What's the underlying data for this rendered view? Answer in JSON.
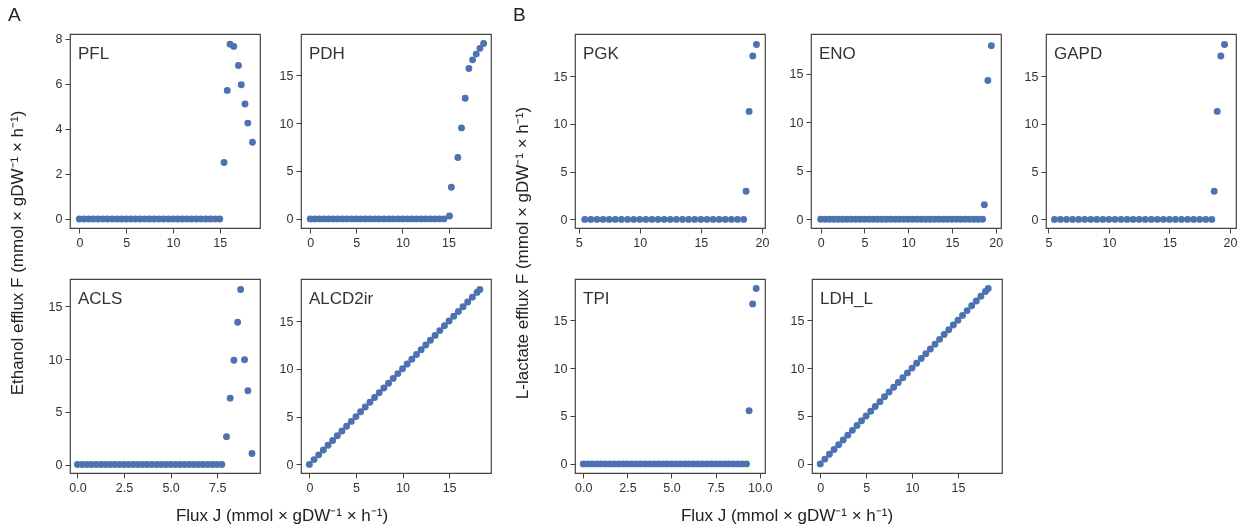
{
  "chart_data": [
    {
      "type": "scatter",
      "title": "PFL",
      "annotations": [
        "A"
      ],
      "ylabel": "Ethanol efflux F (mmol × gDW⁻¹ × h⁻¹)",
      "marker": "circle",
      "color": "#4c72b0",
      "xlim": [
        -1,
        19.3
      ],
      "ylim": [
        -0.4,
        8.2
      ],
      "xticks": [
        0,
        5,
        10,
        15
      ],
      "yticks": [
        0,
        2,
        4,
        6,
        8
      ],
      "x": [
        0,
        0.5,
        1,
        1.5,
        2,
        2.5,
        3,
        3.5,
        4,
        4.5,
        5,
        5.5,
        6,
        6.5,
        7,
        7.5,
        8,
        8.5,
        9,
        9.5,
        10,
        10.5,
        11,
        11.5,
        12,
        12.5,
        13,
        13.5,
        14,
        14.5,
        15,
        15.46,
        15.8,
        16.1,
        16.5,
        17.0,
        17.3,
        17.7,
        18.0,
        18.5
      ],
      "values": [
        0,
        0,
        0,
        0,
        0,
        0,
        0,
        0,
        0,
        0,
        0,
        0,
        0,
        0,
        0,
        0,
        0,
        0,
        0,
        0,
        0,
        0,
        0,
        0,
        0,
        0,
        0,
        0,
        0,
        0,
        0,
        2.5,
        5.7,
        7.75,
        7.65,
        6.8,
        5.95,
        5.1,
        4.25,
        3.4
      ]
    },
    {
      "type": "scatter",
      "title": "PDH",
      "marker": "circle",
      "color": "#4c72b0",
      "xlim": [
        -1,
        19.6
      ],
      "ylim": [
        -0.95,
        19.3
      ],
      "xticks": [
        0,
        5,
        10,
        15
      ],
      "yticks": [
        0,
        5,
        10,
        15
      ],
      "x": [
        0,
        0.5,
        1,
        1.5,
        2,
        2.5,
        3,
        3.5,
        4,
        4.5,
        5,
        5.5,
        6,
        6.5,
        7,
        7.5,
        8,
        8.5,
        9,
        9.5,
        10,
        10.5,
        11,
        11.5,
        12,
        12.5,
        13,
        13.5,
        14,
        14.5,
        15.1,
        15.3,
        16.0,
        16.4,
        16.8,
        17.2,
        17.6,
        18.0,
        18.4,
        18.8
      ],
      "values": [
        0,
        0,
        0,
        0,
        0,
        0,
        0,
        0,
        0,
        0,
        0,
        0,
        0,
        0,
        0,
        0,
        0,
        0,
        0,
        0,
        0,
        0,
        0,
        0,
        0,
        0,
        0,
        0,
        0,
        0,
        0.3,
        3.3,
        6.4,
        9.5,
        12.6,
        15.7,
        16.6,
        17.2,
        17.8,
        18.3
      ]
    },
    {
      "type": "scatter",
      "title": "ACLS",
      "xlabel": "Flux J (mmol × gDW⁻¹ × h⁻¹)",
      "marker": "circle",
      "color": "#4c72b0",
      "xlim": [
        -0.4,
        9.8
      ],
      "ylim": [
        -0.8,
        17.6
      ],
      "xticks": [
        {
          "value": 0,
          "label": "0.0"
        },
        {
          "value": 2.5,
          "label": "2.5"
        },
        {
          "value": 5,
          "label": "5.0"
        },
        {
          "value": 7.5,
          "label": "7.5"
        }
      ],
      "yticks": [
        0,
        5,
        10,
        15
      ],
      "x": [
        0,
        0.25,
        0.5,
        0.75,
        1,
        1.25,
        1.5,
        1.75,
        2,
        2.25,
        2.5,
        2.75,
        3,
        3.25,
        3.5,
        3.75,
        4,
        4.25,
        4.5,
        4.75,
        5,
        5.25,
        5.5,
        5.75,
        6,
        6.25,
        6.5,
        6.75,
        7,
        7.25,
        7.5,
        7.75,
        8.0,
        8.2,
        8.4,
        8.6,
        8.76,
        8.97,
        9.15,
        9.37
      ],
      "values": [
        0,
        0,
        0,
        0,
        0,
        0,
        0,
        0,
        0,
        0,
        0,
        0,
        0,
        0,
        0,
        0,
        0,
        0,
        0,
        0,
        0,
        0,
        0,
        0,
        0,
        0,
        0,
        0,
        0,
        0,
        0,
        0,
        2.65,
        6.3,
        9.9,
        13.5,
        16.6,
        9.95,
        7.0,
        1.05
      ]
    },
    {
      "type": "scatter",
      "title": "ALCD2ir",
      "marker": "circle",
      "color": "#4c72b0",
      "xlim": [
        -0.9,
        19.5
      ],
      "ylim": [
        -0.9,
        19.4
      ],
      "xticks": [
        0,
        5,
        10,
        15
      ],
      "yticks": [
        0,
        5,
        10,
        15
      ],
      "x": [
        0,
        0.5,
        1,
        1.5,
        2,
        2.5,
        3,
        3.5,
        4,
        4.5,
        5,
        5.5,
        6,
        6.5,
        7,
        7.5,
        8,
        8.5,
        9,
        9.5,
        10,
        10.5,
        11,
        11.5,
        12,
        12.5,
        13,
        13.5,
        14,
        14.5,
        15,
        15.5,
        16,
        16.5,
        17,
        17.5,
        18,
        18.3
      ],
      "values": [
        0,
        0.5,
        1,
        1.5,
        2,
        2.5,
        3,
        3.5,
        4,
        4.5,
        5,
        5.5,
        6,
        6.5,
        7,
        7.5,
        8,
        8.5,
        9,
        9.5,
        10,
        10.5,
        11,
        11.5,
        12,
        12.5,
        13,
        13.5,
        14,
        14.5,
        15,
        15.5,
        16,
        16.5,
        17,
        17.5,
        18,
        18.3
      ]
    },
    {
      "type": "scatter",
      "title": "PGK",
      "annotations": [
        "B"
      ],
      "ylabel": "L-lactate efflux F (mmol × gDW⁻¹ × h⁻¹)",
      "marker": "circle",
      "color": "#4c72b0",
      "xlim": [
        4.7,
        20.25
      ],
      "ylim": [
        -0.9,
        19.4
      ],
      "xticks": [
        5,
        10,
        15,
        20
      ],
      "yticks": [
        0,
        5,
        10,
        15
      ],
      "x": [
        5.5,
        6,
        6.5,
        7,
        7.5,
        8,
        8.5,
        9,
        9.5,
        10,
        10.5,
        11,
        11.5,
        12,
        12.5,
        13,
        13.5,
        14,
        14.5,
        15,
        15.5,
        16,
        16.5,
        17,
        17.5,
        18,
        18.5,
        18.7,
        18.95,
        19.25,
        19.55
      ],
      "values": [
        0,
        0,
        0,
        0,
        0,
        0,
        0,
        0,
        0,
        0,
        0,
        0,
        0,
        0,
        0,
        0,
        0,
        0,
        0,
        0,
        0,
        0,
        0,
        0,
        0,
        0,
        0,
        2.95,
        11.3,
        17.1,
        18.3
      ]
    },
    {
      "type": "scatter",
      "title": "ENO",
      "marker": "circle",
      "color": "#4c72b0",
      "xlim": [
        -1.1,
        20.6
      ],
      "ylim": [
        -0.9,
        19.1
      ],
      "xticks": [
        0,
        5,
        10,
        15,
        20
      ],
      "yticks": [
        0,
        5,
        10,
        15
      ],
      "x": [
        0,
        0.5,
        1,
        1.5,
        2,
        2.5,
        3,
        3.5,
        4,
        4.5,
        5,
        5.5,
        6,
        6.5,
        7,
        7.5,
        8,
        8.5,
        9,
        9.5,
        10,
        10.5,
        11,
        11.5,
        12,
        12.5,
        13,
        13.5,
        14,
        14.5,
        15,
        15.5,
        16,
        16.5,
        17,
        17.5,
        18,
        18.5,
        18.7,
        19.1,
        19.5
      ],
      "values": [
        0,
        0,
        0,
        0,
        0,
        0,
        0,
        0,
        0,
        0,
        0,
        0,
        0,
        0,
        0,
        0,
        0,
        0,
        0,
        0,
        0,
        0,
        0,
        0,
        0,
        0,
        0,
        0,
        0,
        0,
        0,
        0,
        0,
        0,
        0,
        0,
        0,
        0,
        1.5,
        14.3,
        17.9
      ]
    },
    {
      "type": "scatter",
      "title": "GAPD",
      "marker": "circle",
      "color": "#4c72b0",
      "xlim": [
        4.8,
        20.5
      ],
      "ylim": [
        -0.9,
        19.4
      ],
      "xticks": [
        5,
        10,
        15,
        20
      ],
      "yticks": [
        0,
        5,
        10,
        15
      ],
      "x": [
        5.5,
        6,
        6.5,
        7,
        7.5,
        8,
        8.5,
        9,
        9.5,
        10,
        10.5,
        11,
        11.5,
        12,
        12.5,
        13,
        13.5,
        14,
        14.5,
        15,
        15.5,
        16,
        16.5,
        17,
        17.5,
        18,
        18.5,
        18.7,
        18.95,
        19.25,
        19.55
      ],
      "values": [
        0,
        0,
        0,
        0,
        0,
        0,
        0,
        0,
        0,
        0,
        0,
        0,
        0,
        0,
        0,
        0,
        0,
        0,
        0,
        0,
        0,
        0,
        0,
        0,
        0,
        0,
        0,
        2.95,
        11.3,
        17.1,
        18.3
      ]
    },
    {
      "type": "scatter",
      "title": "TPI",
      "xlabel": "Flux J (mmol × gDW⁻¹ × h⁻¹)",
      "marker": "circle",
      "color": "#4c72b0",
      "xlim": [
        -0.47,
        10.3
      ],
      "ylim": [
        -0.95,
        19.3
      ],
      "xticks": [
        {
          "value": 0,
          "label": "0.0"
        },
        {
          "value": 2.5,
          "label": "2.5"
        },
        {
          "value": 5,
          "label": "5.0"
        },
        {
          "value": 7.5,
          "label": "7.5"
        },
        {
          "value": 10,
          "label": "10.0"
        }
      ],
      "yticks": [
        0,
        5,
        10,
        15
      ],
      "x": [
        0,
        0.25,
        0.5,
        0.75,
        1,
        1.25,
        1.5,
        1.75,
        2,
        2.25,
        2.5,
        2.75,
        3,
        3.25,
        3.5,
        3.75,
        4,
        4.25,
        4.5,
        4.75,
        5,
        5.25,
        5.5,
        5.75,
        6,
        6.25,
        6.5,
        6.75,
        7,
        7.25,
        7.5,
        7.75,
        8,
        8.25,
        8.5,
        8.75,
        9,
        9.25,
        9.4,
        9.6,
        9.8
      ],
      "values": [
        0,
        0,
        0,
        0,
        0,
        0,
        0,
        0,
        0,
        0,
        0,
        0,
        0,
        0,
        0,
        0,
        0,
        0,
        0,
        0,
        0,
        0,
        0,
        0,
        0,
        0,
        0,
        0,
        0,
        0,
        0,
        0,
        0,
        0,
        0,
        0,
        0,
        0,
        5.55,
        16.7,
        18.3
      ]
    },
    {
      "type": "scatter",
      "title": "LDH_L",
      "marker": "circle",
      "color": "#4c72b0",
      "xlim": [
        -0.9,
        19.8
      ],
      "ylim": [
        -0.95,
        19.3
      ],
      "xticks": [
        0,
        5,
        10,
        15
      ],
      "yticks": [
        0,
        5,
        10,
        15
      ],
      "x": [
        0,
        0.5,
        1,
        1.5,
        2,
        2.5,
        3,
        3.5,
        4,
        4.5,
        5,
        5.5,
        6,
        6.5,
        7,
        7.5,
        8,
        8.5,
        9,
        9.5,
        10,
        10.5,
        11,
        11.5,
        12,
        12.5,
        13,
        13.5,
        14,
        14.5,
        15,
        15.5,
        16,
        16.5,
        17,
        17.5,
        18,
        18.3
      ],
      "values": [
        0,
        0.5,
        1,
        1.5,
        2,
        2.5,
        3,
        3.5,
        4,
        4.5,
        5,
        5.5,
        6,
        6.5,
        7,
        7.5,
        8,
        8.5,
        9,
        9.5,
        10,
        10.5,
        11,
        11.5,
        12,
        12.5,
        13,
        13.5,
        14,
        14.5,
        15,
        15.5,
        16,
        16.5,
        17,
        17.5,
        18,
        18.3
      ]
    }
  ]
}
